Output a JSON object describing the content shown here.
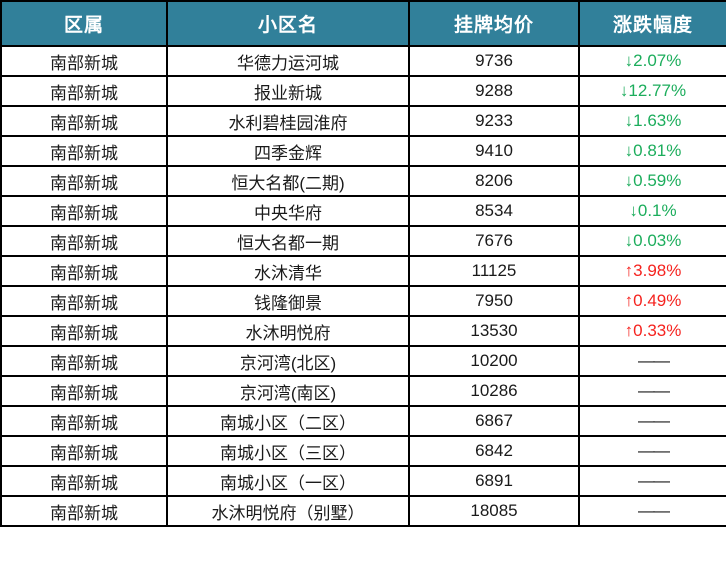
{
  "table": {
    "columns": [
      {
        "key": "district",
        "label": "区属"
      },
      {
        "key": "community",
        "label": "小区名"
      },
      {
        "key": "price",
        "label": "挂牌均价"
      },
      {
        "key": "change",
        "label": "涨跌幅度"
      }
    ],
    "rows": [
      {
        "district": "南部新城",
        "community": "华德力运河城",
        "price": "9736",
        "change": "↓2.07%",
        "trend": "down"
      },
      {
        "district": "南部新城",
        "community": "报业新城",
        "price": "9288",
        "change": "↓12.77%",
        "trend": "down"
      },
      {
        "district": "南部新城",
        "community": "水利碧桂园淮府",
        "price": "9233",
        "change": "↓1.63%",
        "trend": "down"
      },
      {
        "district": "南部新城",
        "community": "四季金辉",
        "price": "9410",
        "change": "↓0.81%",
        "trend": "down"
      },
      {
        "district": "南部新城",
        "community": "恒大名都(二期)",
        "price": "8206",
        "change": "↓0.59%",
        "trend": "down"
      },
      {
        "district": "南部新城",
        "community": "中央华府",
        "price": "8534",
        "change": "↓0.1%",
        "trend": "down"
      },
      {
        "district": "南部新城",
        "community": "恒大名都一期",
        "price": "7676",
        "change": "↓0.03%",
        "trend": "down"
      },
      {
        "district": "南部新城",
        "community": "水沐清华",
        "price": "11125",
        "change": "↑3.98%",
        "trend": "up"
      },
      {
        "district": "南部新城",
        "community": "钱隆御景",
        "price": "7950",
        "change": "↑0.49%",
        "trend": "up"
      },
      {
        "district": "南部新城",
        "community": "水沐明悦府",
        "price": "13530",
        "change": "↑0.33%",
        "trend": "up"
      },
      {
        "district": "南部新城",
        "community": "京河湾(北区)",
        "price": "10200",
        "change": "——",
        "trend": "none"
      },
      {
        "district": "南部新城",
        "community": "京河湾(南区)",
        "price": "10286",
        "change": "——",
        "trend": "none"
      },
      {
        "district": "南部新城",
        "community": "南城小区（二区）",
        "price": "6867",
        "change": "——",
        "trend": "none"
      },
      {
        "district": "南部新城",
        "community": "南城小区（三区）",
        "price": "6842",
        "change": "——",
        "trend": "none"
      },
      {
        "district": "南部新城",
        "community": "南城小区（一区）",
        "price": "6891",
        "change": "——",
        "trend": "none"
      },
      {
        "district": "南部新城",
        "community": "水沐明悦府（别墅）",
        "price": "18085",
        "change": "——",
        "trend": "none"
      }
    ]
  },
  "colors": {
    "header_bg": "#31809A",
    "header_text": "#FFFFFF",
    "down_green": "#1CAD5C",
    "up_red": "#F5231F",
    "border": "#000000",
    "body_text": "#1A1A1A"
  }
}
